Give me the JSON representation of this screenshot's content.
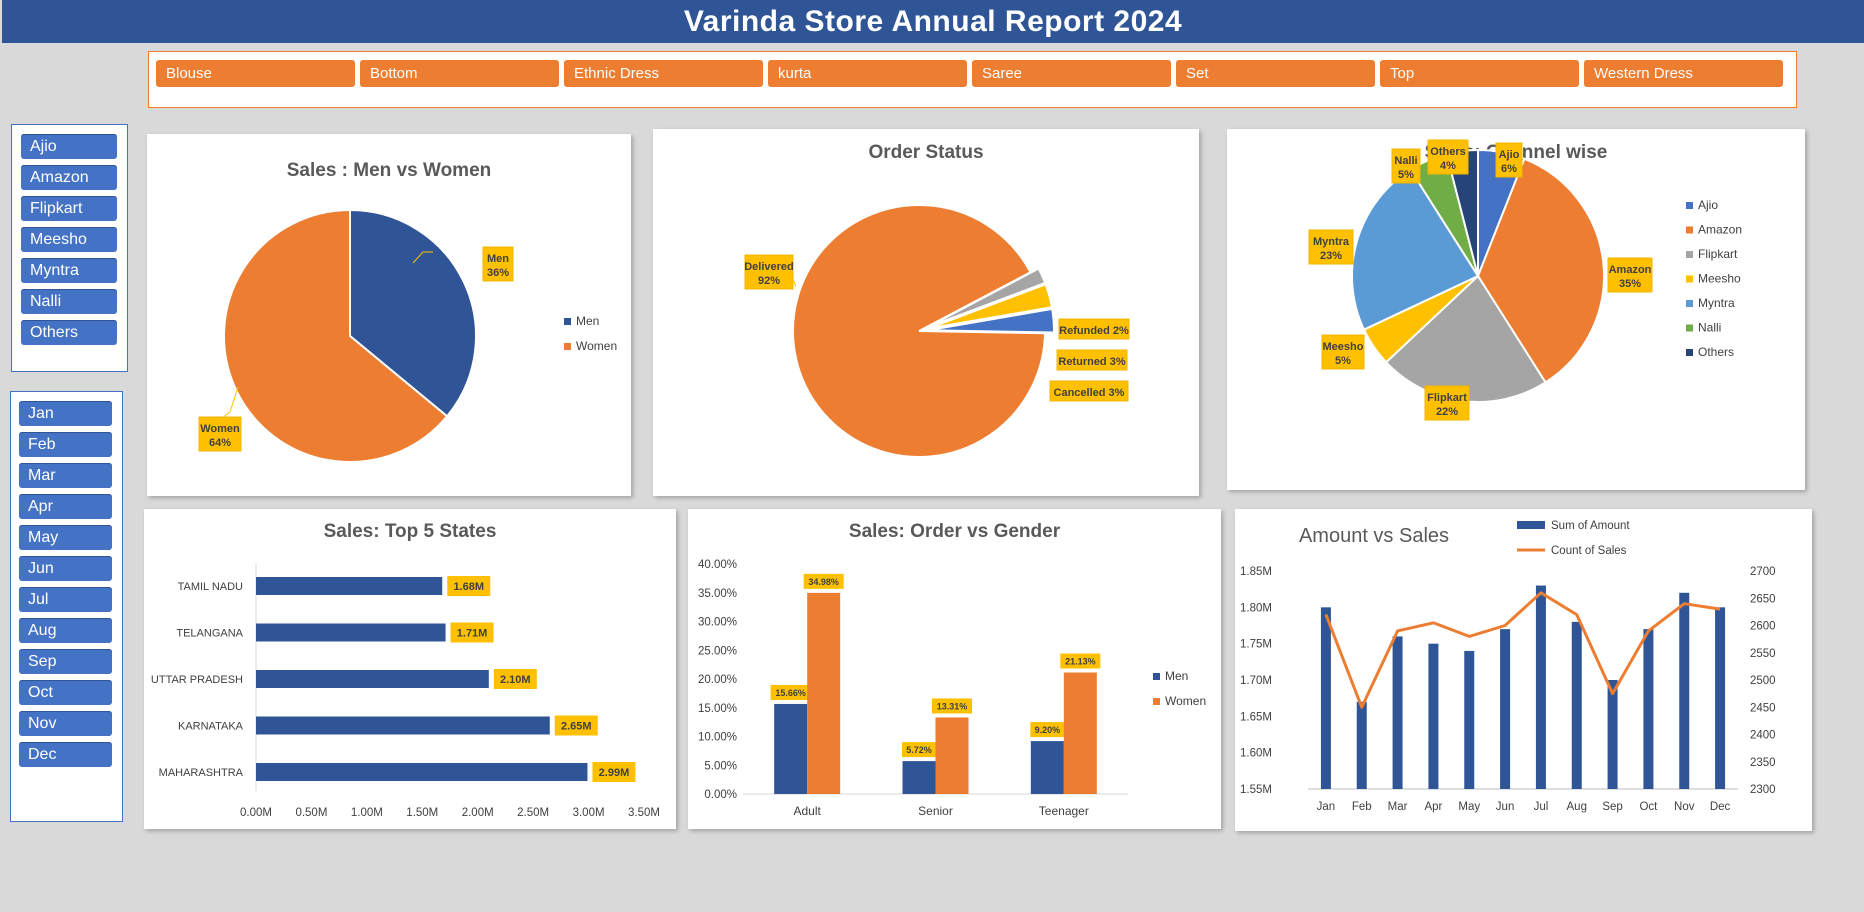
{
  "header": {
    "title": "Varinda Store Annual Report 2024"
  },
  "category_slicer": {
    "items": [
      "Blouse",
      "Bottom",
      "Ethnic Dress",
      "kurta",
      "Saree",
      "Set",
      "Top",
      "Western Dress"
    ]
  },
  "channel_slicer": {
    "items": [
      "Ajio",
      "Amazon",
      "Flipkart",
      "Meesho",
      "Myntra",
      "Nalli",
      "Others"
    ]
  },
  "month_slicer": {
    "items": [
      "Jan",
      "Feb",
      "Mar",
      "Apr",
      "May",
      "Jun",
      "Jul",
      "Aug",
      "Sep",
      "Oct",
      "Nov",
      "Dec"
    ]
  },
  "colors": {
    "blue": "#2f5597",
    "orange": "#ed7d31",
    "label": "#ffc000",
    "slicer_blue": "#4472c4"
  },
  "chart_data": [
    {
      "id": "men_women",
      "type": "pie",
      "title": "Sales : Men vs Women",
      "legend": "right",
      "slices": [
        {
          "name": "Men",
          "value": 36,
          "color": "#2f5597"
        },
        {
          "name": "Women",
          "value": 64,
          "color": "#ed7d31"
        }
      ],
      "labels": [
        "Men",
        "36%",
        "Women",
        "64%"
      ]
    },
    {
      "id": "order_status",
      "type": "pie",
      "title": "Order Status",
      "slices": [
        {
          "name": "Delivered",
          "value": 92,
          "color": "#ed7d31"
        },
        {
          "name": "Refunded",
          "value": 2,
          "color": "#a5a5a5"
        },
        {
          "name": "Returned",
          "value": 3,
          "color": "#ffc000"
        },
        {
          "name": "Cancelled",
          "value": 3,
          "color": "#4472c4"
        }
      ],
      "labels": [
        "Delivered",
        "92%",
        "Refunded 2%",
        "Returned 3%",
        "Cancelled 3%"
      ]
    },
    {
      "id": "channel",
      "type": "pie",
      "title": "Sales: Channel wise",
      "legend": "right",
      "slices": [
        {
          "name": "Ajio",
          "value": 6,
          "color": "#4472c4"
        },
        {
          "name": "Amazon",
          "value": 35,
          "color": "#ed7d31"
        },
        {
          "name": "Flipkart",
          "value": 22,
          "color": "#a5a5a5"
        },
        {
          "name": "Meesho",
          "value": 5,
          "color": "#ffc000"
        },
        {
          "name": "Myntra",
          "value": 23,
          "color": "#5b9bd5"
        },
        {
          "name": "Nalli",
          "value": 5,
          "color": "#70ad47"
        },
        {
          "name": "Others",
          "value": 4,
          "color": "#264478"
        }
      ],
      "labels": [
        "Ajio",
        "6%",
        "Amazon",
        "35%",
        "Flipkart",
        "22%",
        "Meesho",
        "5%",
        "Myntra",
        "23%",
        "Nalli",
        "5%",
        "Others",
        "4%"
      ]
    },
    {
      "id": "states",
      "type": "bar",
      "orientation": "horizontal",
      "title": "Sales: Top 5 States",
      "categories": [
        "TAMIL NADU",
        "TELANGANA",
        "UTTAR PRADESH",
        "KARNATAKA",
        "MAHARASHTRA"
      ],
      "values": [
        1.68,
        1.71,
        2.1,
        2.65,
        2.99
      ],
      "data_labels": [
        "1.68M",
        "1.71M",
        "2.10M",
        "2.65M",
        "2.99M"
      ],
      "xlim": [
        0,
        3.5
      ],
      "xticks": [
        "0.00M",
        "0.50M",
        "1.00M",
        "1.50M",
        "2.00M",
        "2.50M",
        "3.00M",
        "3.50M"
      ]
    },
    {
      "id": "age_gender",
      "type": "bar",
      "title": "Sales: Order vs Gender",
      "legend": "right",
      "categories": [
        "Adult",
        "Senior",
        "Teenager"
      ],
      "series": [
        {
          "name": "Men",
          "values": [
            15.66,
            5.72,
            9.2
          ],
          "labels": [
            "15.66%",
            "5.72%",
            "9.20%"
          ]
        },
        {
          "name": "Women",
          "values": [
            34.98,
            13.31,
            21.13
          ],
          "labels": [
            "34.98%",
            "13.31%",
            "21.13%"
          ]
        }
      ],
      "ylim": [
        0,
        40
      ],
      "yticks": [
        "0.00%",
        "5.00%",
        "10.00%",
        "15.00%",
        "20.00%",
        "25.00%",
        "30.00%",
        "35.00%",
        "40.00%"
      ]
    },
    {
      "id": "amount_sales",
      "type": "bar+line",
      "title": "Amount vs Sales",
      "legend": "top",
      "categories": [
        "Jan",
        "Feb",
        "Mar",
        "Apr",
        "May",
        "Jun",
        "Jul",
        "Aug",
        "Sep",
        "Oct",
        "Nov",
        "Dec"
      ],
      "series": [
        {
          "name": "Sum of Amount",
          "axis": "left",
          "values": [
            1.8,
            1.67,
            1.76,
            1.75,
            1.74,
            1.77,
            1.83,
            1.78,
            1.7,
            1.77,
            1.82,
            1.8
          ]
        },
        {
          "name": "Count of Sales",
          "axis": "right",
          "values": [
            2620,
            2450,
            2590,
            2605,
            2580,
            2600,
            2660,
            2620,
            2475,
            2590,
            2640,
            2630
          ]
        }
      ],
      "ylim": [
        1.55,
        1.85
      ],
      "yticks": [
        "1.55M",
        "1.60M",
        "1.65M",
        "1.70M",
        "1.75M",
        "1.80M",
        "1.85M"
      ],
      "y2lim": [
        2300,
        2700
      ],
      "y2ticks": [
        "2300",
        "2350",
        "2400",
        "2450",
        "2500",
        "2550",
        "2600",
        "2650",
        "2700"
      ]
    }
  ]
}
